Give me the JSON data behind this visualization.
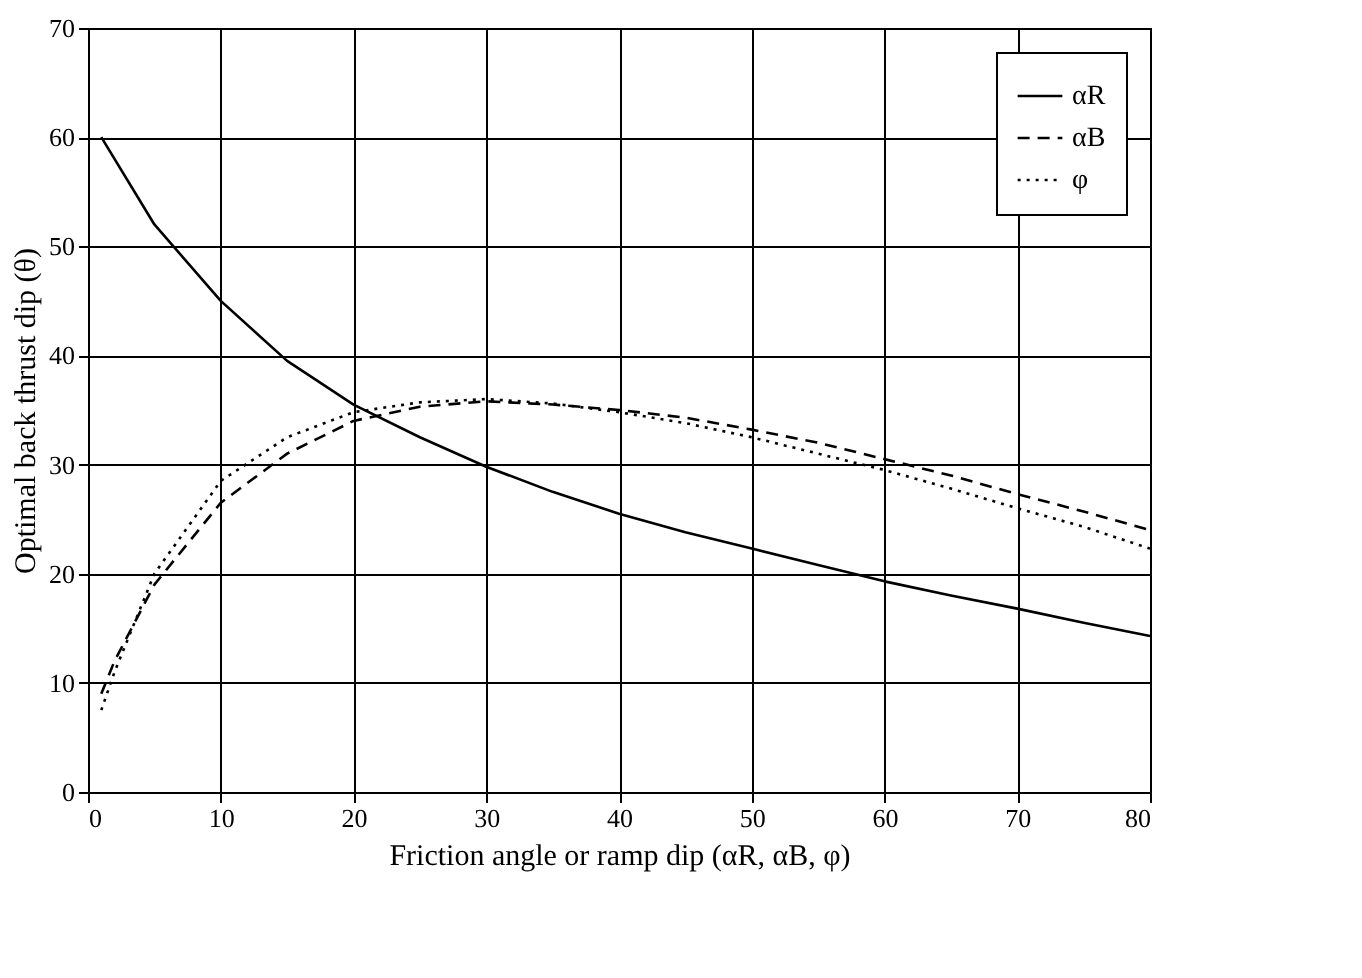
{
  "chart_data": {
    "type": "line",
    "xlabel": "Friction angle or ramp dip (αR, αB, φ)",
    "ylabel": "Optimal back thrust dip (θ)",
    "xlim": [
      0,
      80
    ],
    "xticks": [
      0,
      10,
      20,
      30,
      40,
      50,
      60,
      70,
      80
    ],
    "ylim": [
      0,
      70
    ],
    "yticks": [
      0,
      10,
      20,
      30,
      40,
      50,
      60,
      70
    ],
    "grid": true,
    "legend": "top right",
    "marker": "none",
    "series": [
      {
        "name": "αR",
        "color": "#000000",
        "line_style": "solid",
        "x": [
          1,
          5,
          10,
          15,
          20,
          25,
          30,
          35,
          40,
          45,
          50,
          55,
          60,
          65,
          70,
          75,
          80
        ],
        "values": [
          60,
          52,
          45,
          39.5,
          35.5,
          32.5,
          29.8,
          27.5,
          25.5,
          23.8,
          22.3,
          20.8,
          19.3,
          18,
          16.8,
          15.5,
          14.3
        ]
      },
      {
        "name": "αB",
        "color": "#000000",
        "line_style": "dashed",
        "x": [
          1,
          2,
          5,
          10,
          15,
          20,
          25,
          30,
          35,
          40,
          45,
          50,
          55,
          60,
          65,
          70,
          75,
          80
        ],
        "values": [
          9,
          12,
          19,
          26.5,
          31,
          34,
          35.3,
          35.8,
          35.5,
          35,
          34.3,
          33.2,
          32,
          30.5,
          29,
          27.3,
          25.7,
          24
        ]
      },
      {
        "name": "φ",
        "color": "#000000",
        "line_style": "dotted",
        "x": [
          1,
          2,
          5,
          10,
          15,
          20,
          25,
          30,
          35,
          40,
          45,
          50,
          55,
          60,
          65,
          70,
          75,
          80
        ],
        "values": [
          7.5,
          11,
          20,
          28.5,
          32.5,
          34.8,
          35.7,
          36,
          35.6,
          34.8,
          33.8,
          32.5,
          31,
          29.5,
          27.8,
          26,
          24.3,
          22.3
        ]
      }
    ]
  }
}
